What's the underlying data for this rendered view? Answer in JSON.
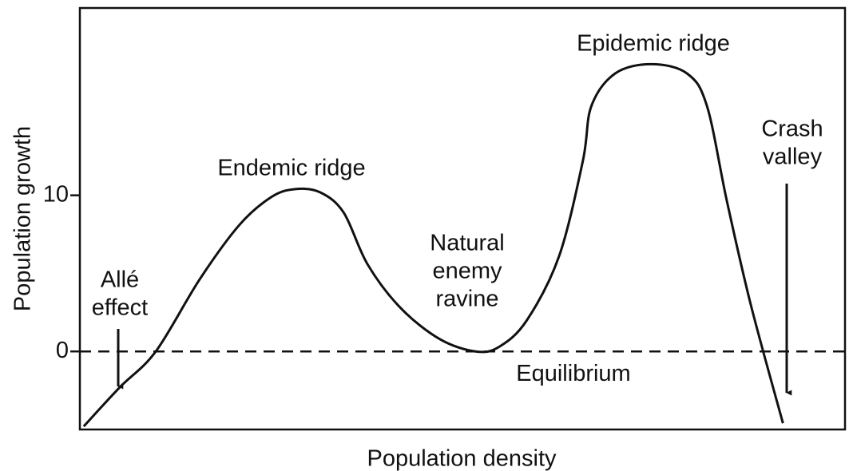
{
  "chart_data": {
    "type": "line",
    "xlabel": "Population density",
    "ylabel": "Population growth",
    "x": [
      0.5,
      5.2,
      9.9,
      15.6,
      20.8,
      25,
      28.1,
      31.3,
      34.4,
      37.5,
      41.8,
      46.9,
      51.6,
      54.7,
      58.3,
      62.5,
      65.6,
      66.7,
      69.8,
      74.5,
      79.2,
      81.8,
      84.4,
      87.5,
      91.7
    ],
    "series": [
      {
        "color": "#111111",
        "values": [
          -4.8,
          -2.3,
          0,
          4.6,
          8.1,
          9.9,
          10.4,
          10.2,
          8.9,
          5.6,
          2.8,
          0.8,
          0,
          0.3,
          2.0,
          6.1,
          12.2,
          15.7,
          17.8,
          18.4,
          17.8,
          15.7,
          9.6,
          3.0,
          -4.6
        ]
      }
    ],
    "xlim": [
      0,
      100
    ],
    "ylim": [
      -5,
      22
    ],
    "yticks": [
      0,
      10
    ],
    "reference_line": {
      "label": "Equilibrium",
      "value": 0
    },
    "annotations": [
      {
        "lines": [
          "Allé",
          "effect"
        ]
      },
      {
        "lines": [
          "Endemic ridge"
        ]
      },
      {
        "lines": [
          "Natural",
          "enemy",
          "ravine"
        ]
      },
      {
        "lines": [
          "Epidemic ridge"
        ]
      },
      {
        "lines": [
          "Crash",
          "valley"
        ]
      }
    ]
  }
}
